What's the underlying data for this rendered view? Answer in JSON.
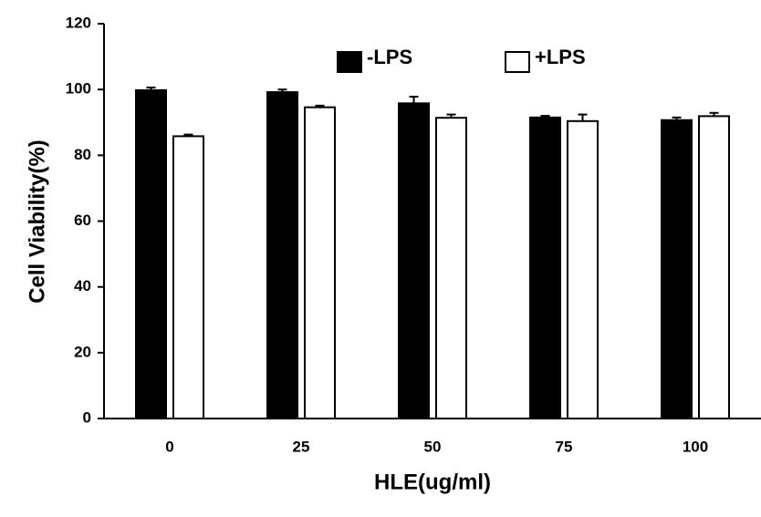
{
  "chart_data": {
    "type": "bar",
    "x_label": "HLE(ug/ml)",
    "y_label": "Cell Viability(%)",
    "categories": [
      "0",
      "25",
      "50",
      "75",
      "100"
    ],
    "series": [
      {
        "name": "-LPS",
        "color": "#000000",
        "values": [
          99.8,
          99.2,
          95.8,
          91.5,
          90.7
        ],
        "errors": [
          0.8,
          0.8,
          2.0,
          0.5,
          0.8
        ]
      },
      {
        "name": "+LPS",
        "color": "#ffffff",
        "values": [
          85.8,
          94.6,
          91.4,
          90.4,
          91.9
        ],
        "errors": [
          0.5,
          0.5,
          1.0,
          2.0,
          1.0
        ]
      }
    ],
    "ylim": [
      0,
      120
    ],
    "yticks": [
      0,
      20,
      40,
      60,
      80,
      100,
      120
    ],
    "legend": "top",
    "grid": false
  }
}
